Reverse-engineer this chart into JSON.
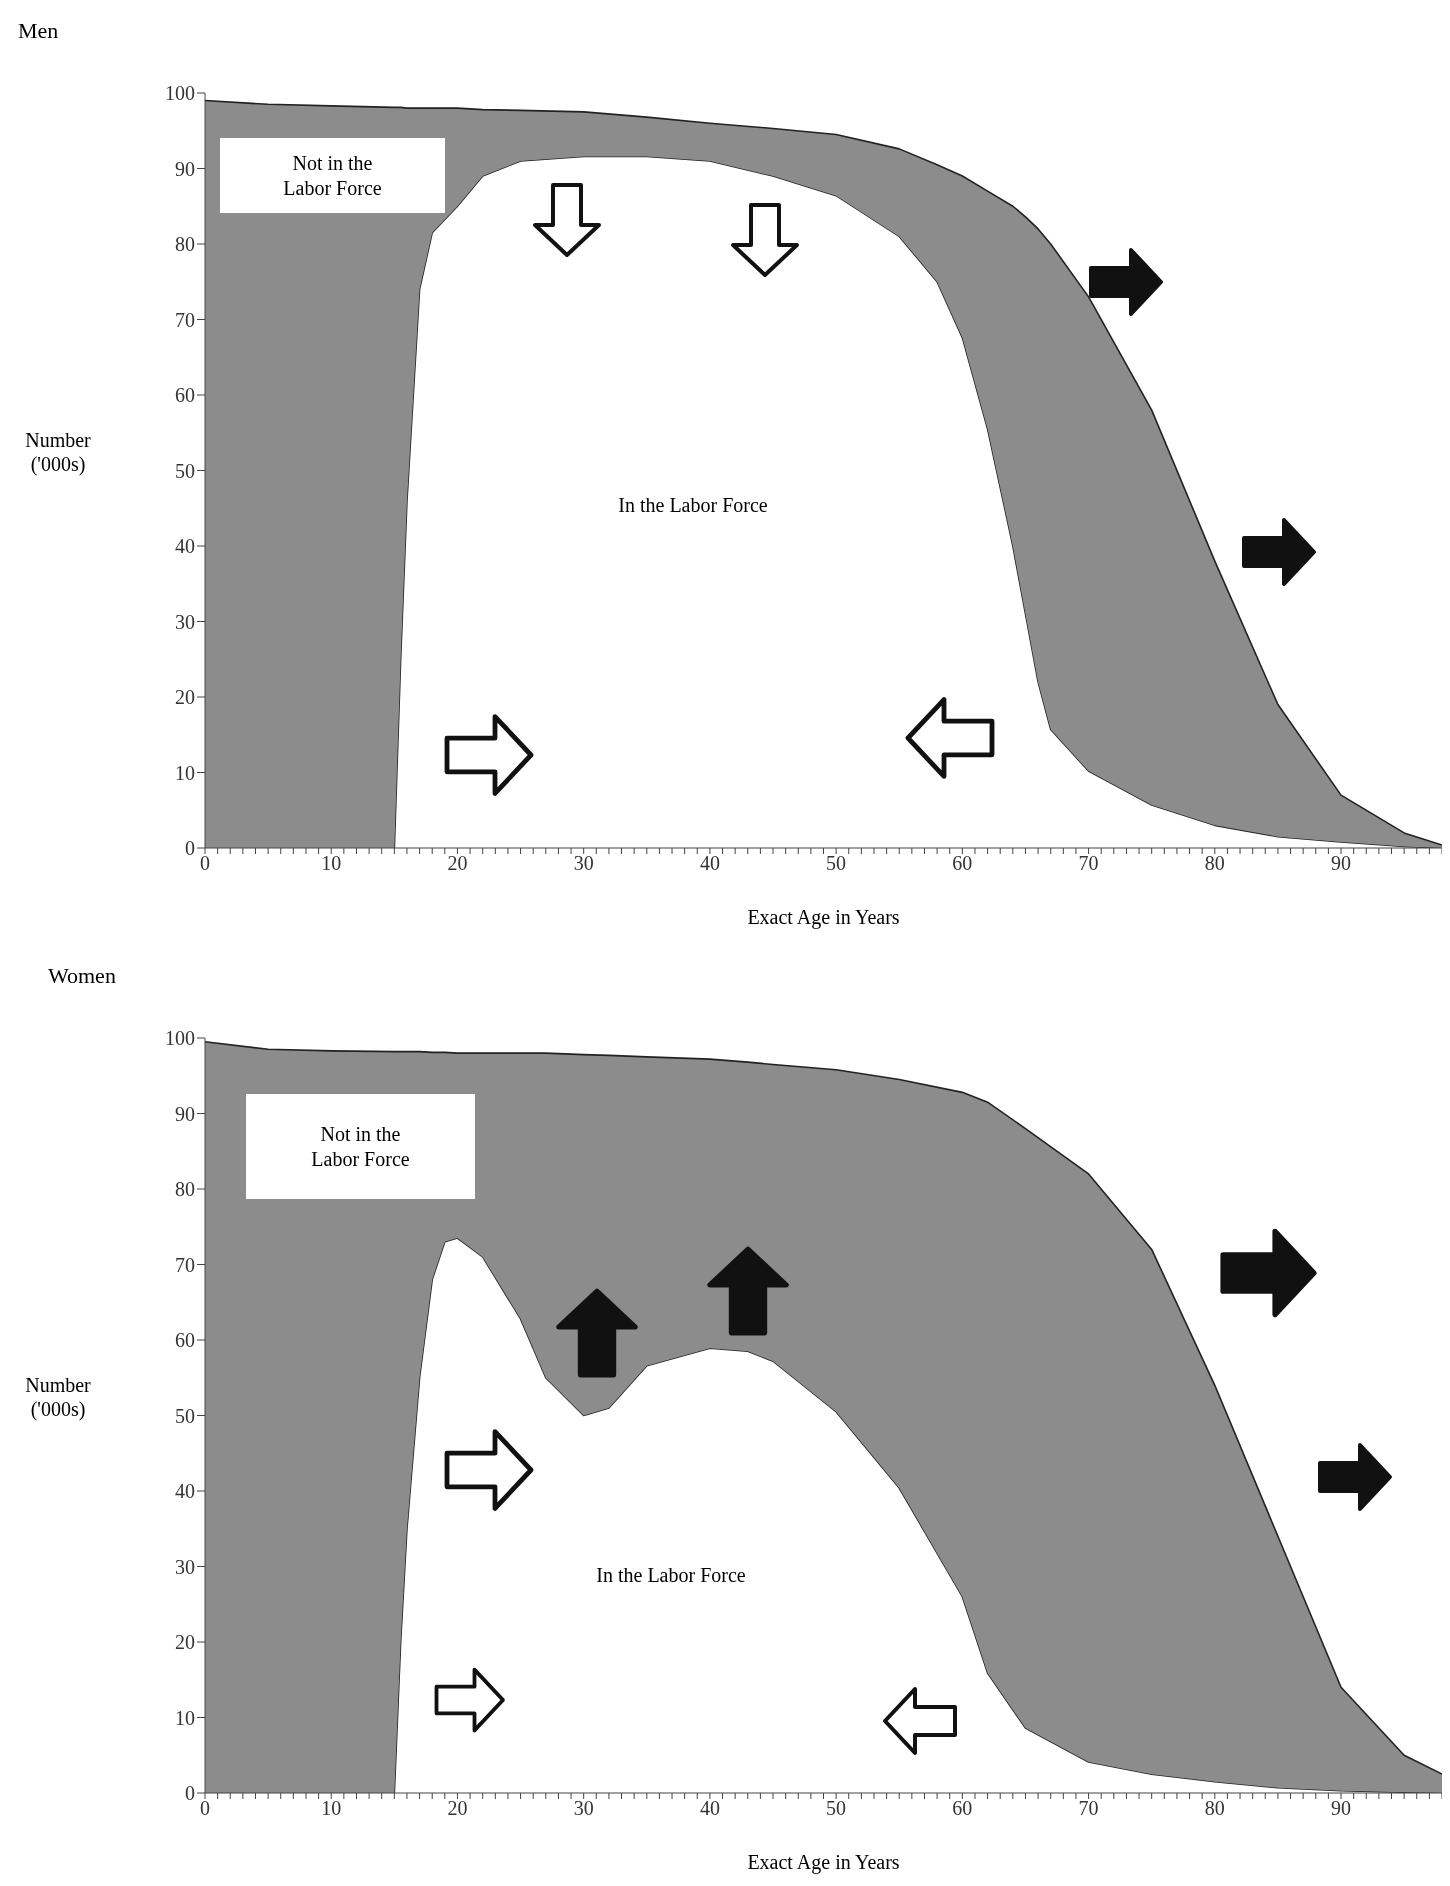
{
  "chart_data": [
    {
      "type": "area",
      "title": "Men",
      "xlabel": "Exact Age in Years",
      "ylabel": "Number ('000s)",
      "stacked": true,
      "legend": false,
      "grid": false,
      "x": [
        0,
        5,
        10,
        15,
        15.5,
        16,
        17,
        18,
        20,
        22,
        25,
        30,
        35,
        40,
        45,
        50,
        55,
        58,
        60,
        62,
        64,
        65,
        66,
        67,
        70,
        75,
        80,
        85,
        90,
        95,
        98
      ],
      "series": [
        {
          "name": "In the Labor Force",
          "color": "#ffffff",
          "values": [
            0,
            0,
            0,
            0,
            25,
            46,
            74,
            81.5,
            85,
            89,
            91,
            91.6,
            91.6,
            91,
            89,
            86.4,
            81,
            75,
            67.6,
            55.5,
            40,
            31,
            22,
            15.7,
            10.2,
            5.7,
            3,
            1.5,
            0.8,
            0.2,
            0
          ]
        },
        {
          "name": "Not in the Labor Force",
          "color": "#8c8c8c",
          "values": [
            99,
            98.5,
            98.3,
            98.1,
            73.1,
            52,
            24,
            16.5,
            13,
            8.8,
            6.7,
            5.9,
            5.2,
            5,
            6.3,
            8.1,
            11.6,
            15.5,
            21.4,
            31.5,
            45,
            52.6,
            60,
            64.3,
            62.8,
            52.3,
            35,
            17.5,
            6.2,
            1.8,
            0.4
          ]
        }
      ],
      "xlim": [
        0,
        98
      ],
      "ylim": [
        0,
        100
      ],
      "yticks": [
        0,
        10,
        20,
        30,
        40,
        50,
        60,
        70,
        80,
        90,
        100
      ],
      "xticks": [
        0,
        {
          "value": 1,
          "label": null
        },
        {
          "value": 2,
          "label": null
        },
        {
          "value": 3,
          "label": null
        },
        {
          "value": 4,
          "label": null
        },
        {
          "value": 5,
          "label": null
        },
        {
          "value": 6,
          "label": null
        },
        {
          "value": 7,
          "label": null
        },
        {
          "value": 8,
          "label": null
        },
        {
          "value": 9,
          "label": null
        },
        10,
        {
          "value": 11,
          "label": null
        },
        {
          "value": 12,
          "label": null
        },
        {
          "value": 13,
          "label": null
        },
        {
          "value": 14,
          "label": null
        },
        {
          "value": 15,
          "label": null
        },
        {
          "value": 16,
          "label": null
        },
        {
          "value": 17,
          "label": null
        },
        {
          "value": 18,
          "label": null
        },
        {
          "value": 19,
          "label": null
        },
        20,
        {
          "value": 21,
          "label": null
        },
        {
          "value": 22,
          "label": null
        },
        {
          "value": 23,
          "label": null
        },
        {
          "value": 24,
          "label": null
        },
        {
          "value": 25,
          "label": null
        },
        {
          "value": 26,
          "label": null
        },
        {
          "value": 27,
          "label": null
        },
        {
          "value": 28,
          "label": null
        },
        {
          "value": 29,
          "label": null
        },
        30,
        {
          "value": 31,
          "label": null
        },
        {
          "value": 32,
          "label": null
        },
        {
          "value": 33,
          "label": null
        },
        {
          "value": 34,
          "label": null
        },
        {
          "value": 35,
          "label": null
        },
        {
          "value": 36,
          "label": null
        },
        {
          "value": 37,
          "label": null
        },
        {
          "value": 38,
          "label": null
        },
        {
          "value": 39,
          "label": null
        },
        40,
        {
          "value": 41,
          "label": null
        },
        {
          "value": 42,
          "label": null
        },
        {
          "value": 43,
          "label": null
        },
        {
          "value": 44,
          "label": null
        },
        {
          "value": 45,
          "label": null
        },
        {
          "value": 46,
          "label": null
        },
        {
          "value": 47,
          "label": null
        },
        {
          "value": 48,
          "label": null
        },
        {
          "value": 49,
          "label": null
        },
        50,
        {
          "value": 51,
          "label": null
        },
        {
          "value": 52,
          "label": null
        },
        {
          "value": 53,
          "label": null
        },
        {
          "value": 54,
          "label": null
        },
        {
          "value": 55,
          "label": null
        },
        {
          "value": 56,
          "label": null
        },
        {
          "value": 57,
          "label": null
        },
        {
          "value": 58,
          "label": null
        },
        {
          "value": 59,
          "label": null
        },
        60,
        {
          "value": 61,
          "label": null
        },
        {
          "value": 62,
          "label": null
        },
        {
          "value": 63,
          "label": null
        },
        {
          "value": 64,
          "label": null
        },
        {
          "value": 65,
          "label": null
        },
        {
          "value": 66,
          "label": null
        },
        {
          "value": 67,
          "label": null
        },
        {
          "value": 68,
          "label": null
        },
        {
          "value": 69,
          "label": null
        },
        70,
        {
          "value": 71,
          "label": null
        },
        {
          "value": 72,
          "label": null
        },
        {
          "value": 73,
          "label": null
        },
        {
          "value": 74,
          "label": null
        },
        {
          "value": 75,
          "label": null
        },
        {
          "value": 76,
          "label": null
        },
        {
          "value": 77,
          "label": null
        },
        {
          "value": 78,
          "label": null
        },
        {
          "value": 79,
          "label": null
        },
        80,
        {
          "value": 81,
          "label": null
        },
        {
          "value": 82,
          "label": null
        },
        {
          "value": 83,
          "label": null
        },
        {
          "value": 84,
          "label": null
        },
        {
          "value": 85,
          "label": null
        },
        {
          "value": 86,
          "label": null
        },
        {
          "value": 87,
          "label": null
        },
        {
          "value": 88,
          "label": null
        },
        {
          "value": 89,
          "label": null
        },
        90,
        {
          "value": 91,
          "label": null
        },
        {
          "value": 92,
          "label": null
        },
        {
          "value": 93,
          "label": null
        },
        {
          "value": 94,
          "label": null
        },
        {
          "value": 95,
          "label": null
        },
        {
          "value": 96,
          "label": null
        },
        {
          "value": 97,
          "label": null
        },
        {
          "value": 98,
          "label": null
        }
      ]
    },
    {
      "type": "area",
      "title": "Women",
      "xlabel": "Exact Age in Years",
      "ylabel": "Number ('000s)",
      "stacked": true,
      "legend": false,
      "grid": false,
      "x": [
        0,
        5,
        10,
        15,
        15.5,
        16,
        17,
        18,
        19,
        20,
        22,
        25,
        27,
        30,
        32,
        35,
        40,
        43,
        45,
        50,
        55,
        60,
        62,
        65,
        70,
        75,
        80,
        85,
        90,
        95,
        98
      ],
      "series": [
        {
          "name": "In the Labor Force",
          "color": "#ffffff",
          "values": [
            0,
            0,
            0,
            0,
            20,
            35,
            55,
            68,
            73,
            73.5,
            71,
            62.8,
            55,
            50,
            51,
            56.6,
            58.9,
            58.5,
            57.2,
            50.5,
            40.4,
            26,
            15.9,
            8.6,
            4.1,
            2.5,
            1.5,
            0.7,
            0.3,
            0.1,
            0
          ]
        },
        {
          "name": "Not in the Labor Force",
          "color": "#8c8c8c",
          "values": [
            99.5,
            98.5,
            98.3,
            98.2,
            78.2,
            63.2,
            43.2,
            30.1,
            25.1,
            24.5,
            27,
            35.2,
            43,
            47.8,
            46.7,
            40.9,
            38.3,
            38.3,
            39.3,
            45.3,
            54.1,
            66.8,
            75.6,
            79.4,
            77.9,
            69.5,
            52.5,
            33.3,
            13.7,
            4.9,
            2.5
          ]
        }
      ],
      "xlim": [
        0,
        98
      ],
      "ylim": [
        0,
        100
      ],
      "yticks": [
        0,
        10,
        20,
        30,
        40,
        50,
        60,
        70,
        80,
        90,
        100
      ],
      "xticks": [
        0,
        {
          "value": 1,
          "label": null
        },
        {
          "value": 2,
          "label": null
        },
        {
          "value": 3,
          "label": null
        },
        {
          "value": 4,
          "label": null
        },
        {
          "value": 5,
          "label": null
        },
        {
          "value": 6,
          "label": null
        },
        {
          "value": 7,
          "label": null
        },
        {
          "value": 8,
          "label": null
        },
        {
          "value": 9,
          "label": null
        },
        10,
        {
          "value": 11,
          "label": null
        },
        {
          "value": 12,
          "label": null
        },
        {
          "value": 13,
          "label": null
        },
        {
          "value": 14,
          "label": null
        },
        {
          "value": 15,
          "label": null
        },
        {
          "value": 16,
          "label": null
        },
        {
          "value": 17,
          "label": null
        },
        {
          "value": 18,
          "label": null
        },
        {
          "value": 19,
          "label": null
        },
        20,
        {
          "value": 21,
          "label": null
        },
        {
          "value": 22,
          "label": null
        },
        {
          "value": 23,
          "label": null
        },
        {
          "value": 24,
          "label": null
        },
        {
          "value": 25,
          "label": null
        },
        {
          "value": 26,
          "label": null
        },
        {
          "value": 27,
          "label": null
        },
        {
          "value": 28,
          "label": null
        },
        {
          "value": 29,
          "label": null
        },
        30,
        {
          "value": 31,
          "label": null
        },
        {
          "value": 32,
          "label": null
        },
        {
          "value": 33,
          "label": null
        },
        {
          "value": 34,
          "label": null
        },
        {
          "value": 35,
          "label": null
        },
        {
          "value": 36,
          "label": null
        },
        {
          "value": 37,
          "label": null
        },
        {
          "value": 38,
          "label": null
        },
        {
          "value": 39,
          "label": null
        },
        40,
        {
          "value": 41,
          "label": null
        },
        {
          "value": 42,
          "label": null
        },
        {
          "value": 43,
          "label": null
        },
        {
          "value": 44,
          "label": null
        },
        {
          "value": 45,
          "label": null
        },
        {
          "value": 46,
          "label": null
        },
        {
          "value": 47,
          "label": null
        },
        {
          "value": 48,
          "label": null
        },
        {
          "value": 49,
          "label": null
        },
        50,
        {
          "value": 51,
          "label": null
        },
        {
          "value": 52,
          "label": null
        },
        {
          "value": 53,
          "label": null
        },
        {
          "value": 54,
          "label": null
        },
        {
          "value": 55,
          "label": null
        },
        {
          "value": 56,
          "label": null
        },
        {
          "value": 57,
          "label": null
        },
        {
          "value": 58,
          "label": null
        },
        {
          "value": 59,
          "label": null
        },
        60,
        {
          "value": 61,
          "label": null
        },
        {
          "value": 62,
          "label": null
        },
        {
          "value": 63,
          "label": null
        },
        {
          "value": 64,
          "label": null
        },
        {
          "value": 65,
          "label": null
        },
        {
          "value": 66,
          "label": null
        },
        {
          "value": 67,
          "label": null
        },
        {
          "value": 68,
          "label": null
        },
        {
          "value": 69,
          "label": null
        },
        70,
        {
          "value": 71,
          "label": null
        },
        {
          "value": 72,
          "label": null
        },
        {
          "value": 73,
          "label": null
        },
        {
          "value": 74,
          "label": null
        },
        {
          "value": 75,
          "label": null
        },
        {
          "value": 76,
          "label": null
        },
        {
          "value": 77,
          "label": null
        },
        {
          "value": 78,
          "label": null
        },
        {
          "value": 79,
          "label": null
        },
        80,
        {
          "value": 81,
          "label": null
        },
        {
          "value": 82,
          "label": null
        },
        {
          "value": 83,
          "label": null
        },
        {
          "value": 84,
          "label": null
        },
        {
          "value": 85,
          "label": null
        },
        {
          "value": 86,
          "label": null
        },
        {
          "value": 87,
          "label": null
        },
        {
          "value": 88,
          "label": null
        },
        {
          "value": 89,
          "label": null
        },
        90,
        {
          "value": 91,
          "label": null
        },
        {
          "value": 92,
          "label": null
        },
        {
          "value": 93,
          "label": null
        },
        {
          "value": 94,
          "label": null
        },
        {
          "value": 95,
          "label": null
        },
        {
          "value": 96,
          "label": null
        },
        {
          "value": 97,
          "label": null
        },
        {
          "value": 98,
          "label": null
        }
      ]
    }
  ]
}
